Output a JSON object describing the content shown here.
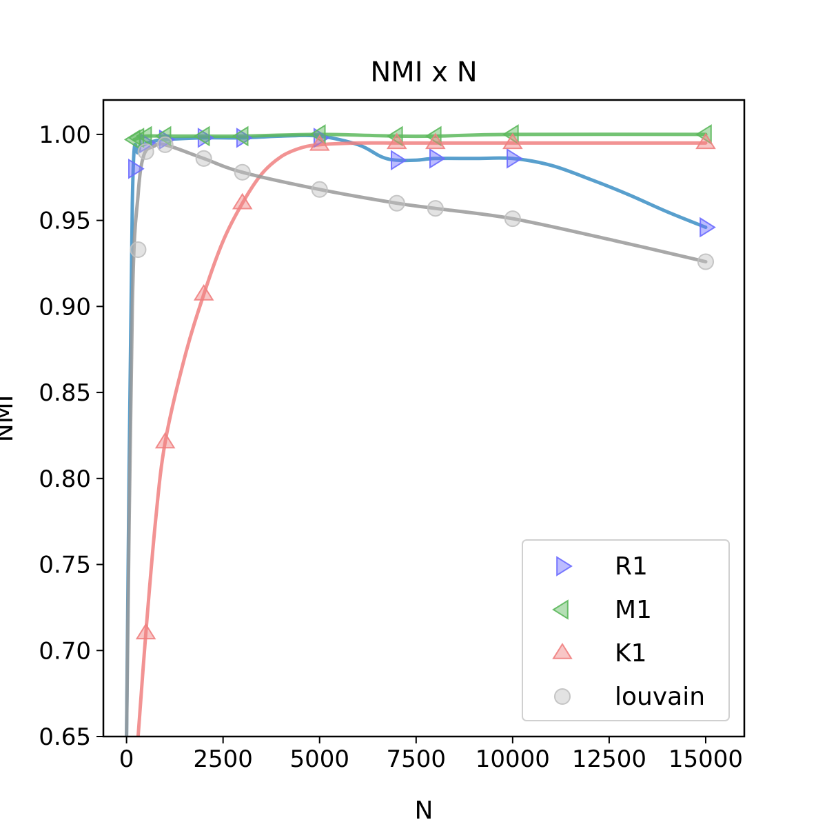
{
  "chart_data": {
    "type": "scatter",
    "title": "NMI x N",
    "xlabel": "N",
    "ylabel": "NMI",
    "xlim": [
      -600,
      16000
    ],
    "ylim": [
      0.65,
      1.02
    ],
    "xticks": [
      0,
      2500,
      5000,
      7500,
      10000,
      12500,
      15000
    ],
    "xtick_labels": [
      "0",
      "2500",
      "5000",
      "7500",
      "10000",
      "12500",
      "15000"
    ],
    "yticks": [
      0.65,
      0.7,
      0.75,
      0.8,
      0.85,
      0.9,
      0.95,
      1.0
    ],
    "ytick_labels": [
      "0.65",
      "0.70",
      "0.75",
      "0.80",
      "0.85",
      "0.90",
      "0.95",
      "1.00"
    ],
    "grid": false,
    "legend_position": "lower-right",
    "series": [
      {
        "name": "R1",
        "marker": "triangle-right",
        "marker_color": "#6b6bff",
        "line_color": "#3b8ec4",
        "x": [
          200,
          500,
          1000,
          2000,
          3000,
          5000,
          7000,
          8000,
          10000,
          15000
        ],
        "y": [
          0.98,
          0.995,
          0.997,
          0.998,
          0.998,
          0.998,
          0.985,
          0.986,
          0.986,
          0.946
        ],
        "curve_x": [
          0,
          150,
          300,
          450,
          700,
          1000,
          2000,
          3000,
          4000,
          5000,
          6000,
          6600,
          7000,
          7500,
          8000,
          9000,
          10000,
          11000,
          12000,
          13000,
          14000,
          15000
        ],
        "curve_y": [
          0.65,
          0.96,
          0.99,
          0.994,
          0.996,
          0.997,
          0.998,
          0.998,
          0.999,
          0.999,
          0.994,
          0.987,
          0.985,
          0.985,
          0.986,
          0.986,
          0.986,
          0.982,
          0.974,
          0.965,
          0.955,
          0.946
        ]
      },
      {
        "name": "M1",
        "marker": "triangle-left",
        "marker_color": "#5cb85c",
        "line_color": "#5cb85c",
        "x": [
          200,
          300,
          500,
          1000,
          2000,
          3000,
          5000,
          7000,
          8000,
          10000,
          15000
        ],
        "y": [
          0.997,
          0.998,
          0.999,
          0.999,
          0.999,
          0.999,
          1.0,
          0.999,
          0.999,
          1.0,
          1.0
        ],
        "curve_x": [
          200,
          500,
          1000,
          2000,
          3000,
          5000,
          7000,
          8000,
          10000,
          15000
        ],
        "curve_y": [
          0.997,
          0.999,
          0.999,
          0.999,
          0.999,
          1.0,
          0.999,
          0.999,
          1.0,
          1.0
        ]
      },
      {
        "name": "K1",
        "marker": "triangle-up",
        "marker_color": "#f08080",
        "line_color": "#f08080",
        "x": [
          500,
          1000,
          2000,
          3000,
          5000,
          7000,
          8000,
          10000,
          15000
        ],
        "y": [
          0.71,
          0.821,
          0.907,
          0.96,
          0.994,
          0.995,
          0.995,
          0.995,
          0.995
        ],
        "curve_x": [
          300,
          500,
          750,
          1000,
          1500,
          2000,
          2500,
          3000,
          3500,
          4000,
          4500,
          5000,
          6000,
          7000,
          8000,
          10000,
          15000
        ],
        "curve_y": [
          0.65,
          0.71,
          0.775,
          0.821,
          0.87,
          0.907,
          0.938,
          0.96,
          0.977,
          0.987,
          0.992,
          0.994,
          0.995,
          0.995,
          0.995,
          0.995,
          0.995
        ]
      },
      {
        "name": "louvain",
        "marker": "circle",
        "marker_color": "#c0c0c0",
        "line_color": "#999999",
        "x": [
          300,
          500,
          1000,
          2000,
          3000,
          5000,
          7000,
          8000,
          10000,
          15000
        ],
        "y": [
          0.933,
          0.99,
          0.994,
          0.986,
          0.978,
          0.968,
          0.96,
          0.957,
          0.951,
          0.926
        ],
        "curve_x": [
          0,
          150,
          300,
          450,
          700,
          1000,
          2000,
          3000,
          5000,
          7000,
          8000,
          10000,
          12500,
          15000
        ],
        "curve_y": [
          0.65,
          0.9,
          0.965,
          0.988,
          0.993,
          0.994,
          0.986,
          0.978,
          0.968,
          0.96,
          0.957,
          0.951,
          0.939,
          0.926
        ]
      }
    ]
  }
}
